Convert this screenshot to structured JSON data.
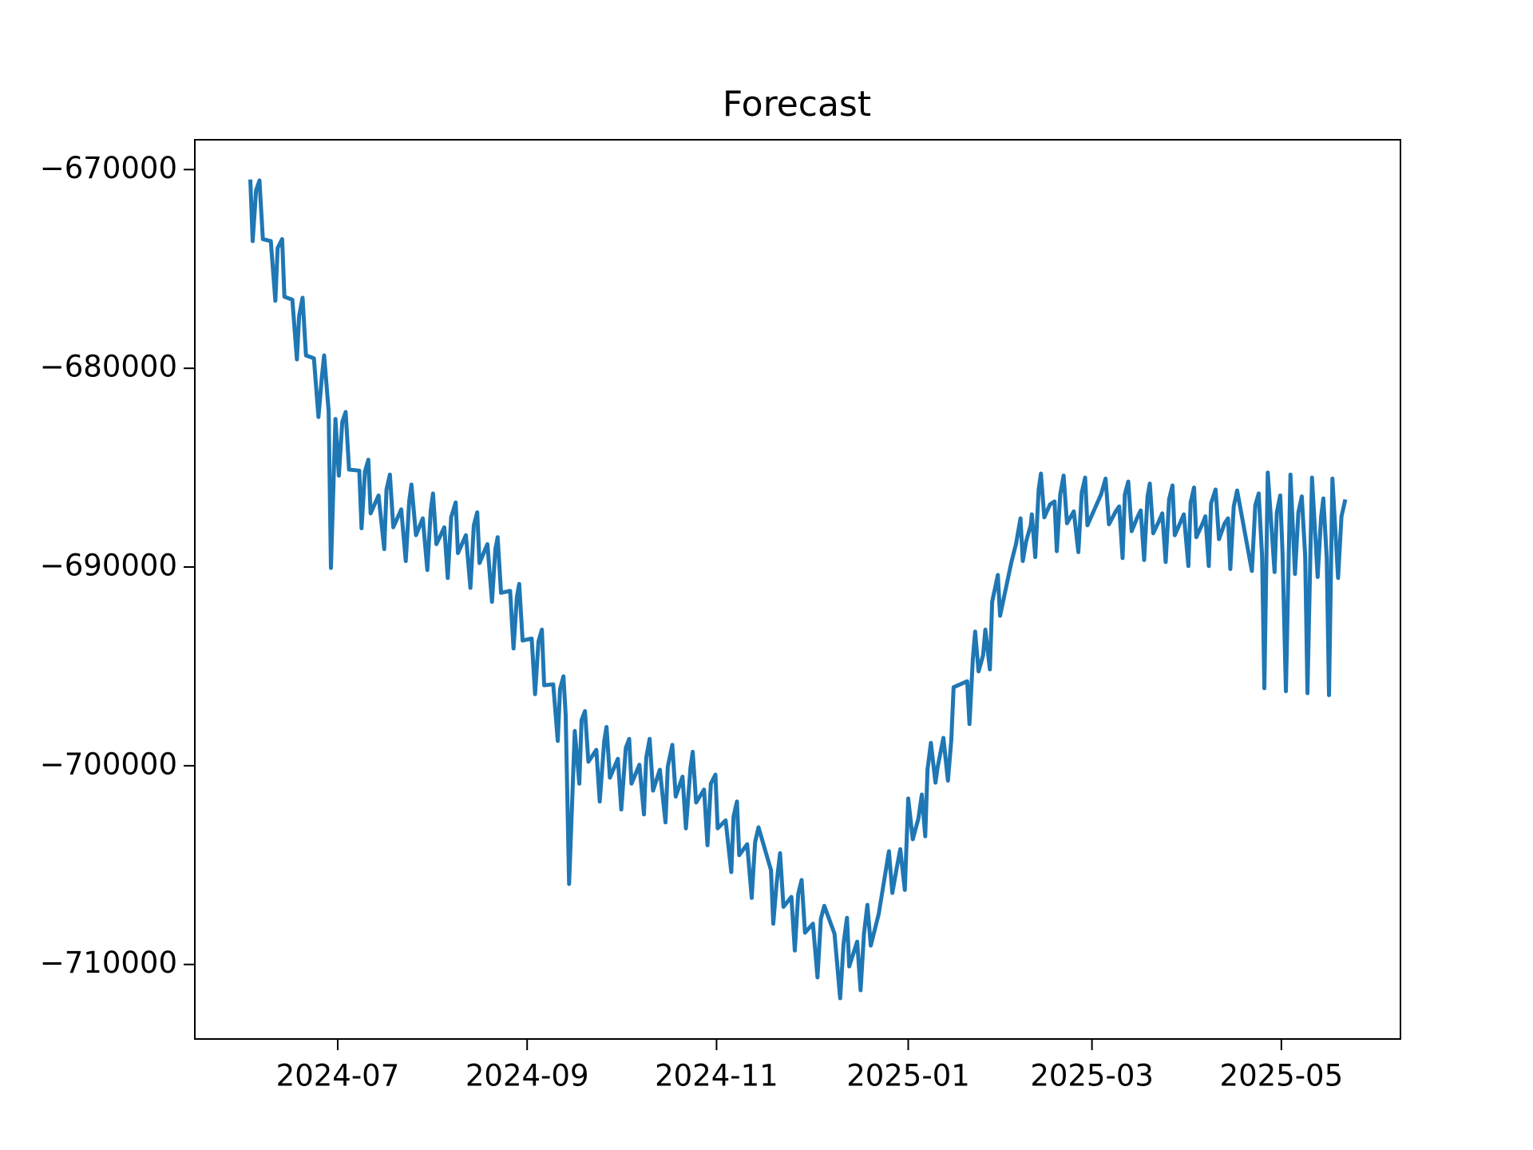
{
  "chart_data": {
    "type": "line",
    "title": "Forecast",
    "color": "#1f77b4",
    "xlim": [
      2024.371,
      2025.434
    ],
    "ylim": [
      -713750,
      -668500
    ],
    "xticks": [
      {
        "value": 2024.497,
        "label": "2024-07"
      },
      {
        "value": 2024.664,
        "label": "2024-09"
      },
      {
        "value": 2024.831,
        "label": "2024-11"
      },
      {
        "value": 2025,
        "label": "2025-01"
      },
      {
        "value": 2025.162,
        "label": "2025-03"
      },
      {
        "value": 2025.329,
        "label": "2025-05"
      }
    ],
    "yticks": [
      {
        "value": -670000,
        "label": "−670000"
      },
      {
        "value": -680000,
        "label": "−680000"
      },
      {
        "value": -690000,
        "label": "−690000"
      },
      {
        "value": -700000,
        "label": "−700000"
      },
      {
        "value": -710000,
        "label": "−710000"
      }
    ],
    "x": [
      2024.42,
      2024.422,
      2024.425,
      2024.428,
      2024.431,
      2024.438,
      2024.442,
      2024.444,
      2024.448,
      2024.45,
      2024.457,
      2024.461,
      2024.463,
      2024.466,
      2024.469,
      2024.476,
      2024.48,
      2024.483,
      2024.485,
      2024.489,
      2024.491,
      2024.495,
      2024.498,
      2024.501,
      2024.504,
      2024.507,
      2024.516,
      2024.518,
      2024.521,
      2024.524,
      2024.526,
      2024.533,
      2024.538,
      2024.54,
      2024.543,
      2024.546,
      2024.553,
      2024.557,
      2024.56,
      2024.562,
      2024.566,
      2024.572,
      2024.576,
      2024.579,
      2024.581,
      2024.584,
      2024.591,
      2024.594,
      2024.597,
      2024.601,
      2024.603,
      2024.61,
      2024.614,
      2024.617,
      2024.62,
      2024.622,
      2024.629,
      2024.633,
      2024.636,
      2024.638,
      2024.641,
      2024.649,
      2024.652,
      2024.655,
      2024.657,
      2024.66,
      2024.668,
      2024.671,
      2024.674,
      2024.677,
      2024.679,
      2024.687,
      2024.691,
      2024.693,
      2024.696,
      2024.698,
      2024.701,
      2024.706,
      2024.71,
      2024.712,
      2024.715,
      2024.718,
      2024.725,
      2024.728,
      2024.732,
      2024.734,
      2024.737,
      2024.744,
      2024.747,
      2024.751,
      2024.754,
      2024.756,
      2024.763,
      2024.767,
      2024.769,
      2024.772,
      2024.775,
      2024.781,
      2024.786,
      2024.788,
      2024.792,
      2024.795,
      2024.801,
      2024.804,
      2024.808,
      2024.81,
      2024.813,
      2024.82,
      2024.823,
      2024.826,
      2024.83,
      2024.832,
      2024.839,
      2024.844,
      2024.846,
      2024.849,
      2024.851,
      2024.858,
      2024.862,
      2024.865,
      2024.868,
      2024.879,
      2024.881,
      2024.884,
      2024.887,
      2024.89,
      2024.897,
      2024.9,
      2024.903,
      2024.906,
      2024.909,
      2024.916,
      2024.92,
      2024.923,
      2024.926,
      2024.935,
      2024.94,
      2024.943,
      2024.946,
      2024.948,
      2024.955,
      2024.958,
      2024.961,
      2024.964,
      2024.967,
      2024.974,
      2024.983,
      2024.986,
      2024.99,
      2024.993,
      2024.997,
      2025.0,
      2025.004,
      2025.009,
      2025.012,
      2025.015,
      2025.017,
      2025.02,
      2025.024,
      2025.026,
      2025.031,
      2025.035,
      2025.038,
      2025.04,
      2025.048,
      2025.052,
      2025.054,
      2025.057,
      2025.059,
      2025.062,
      2025.066,
      2025.068,
      2025.072,
      2025.074,
      2025.079,
      2025.081,
      2025.091,
      2025.095,
      2025.099,
      2025.101,
      2025.104,
      2025.108,
      2025.109,
      2025.112,
      2025.115,
      2025.117,
      2025.12,
      2025.125,
      2025.129,
      2025.131,
      2025.134,
      2025.137,
      2025.14,
      2025.146,
      2025.15,
      2025.153,
      2025.156,
      2025.158,
      2025.17,
      2025.174,
      2025.177,
      2025.183,
      2025.186,
      2025.189,
      2025.191,
      2025.194,
      2025.197,
      2025.202,
      2025.205,
      2025.208,
      2025.211,
      2025.213,
      2025.216,
      2025.221,
      2025.224,
      2025.227,
      2025.23,
      2025.233,
      2025.235,
      2025.24,
      2025.243,
      2025.247,
      2025.249,
      2025.252,
      2025.254,
      2025.26,
      2025.262,
      2025.265,
      2025.267,
      2025.271,
      2025.274,
      2025.279,
      2025.282,
      2025.284,
      2025.287,
      2025.29,
      2025.303,
      2025.306,
      2025.309,
      2025.312,
      2025.314,
      2025.317,
      2025.323,
      2025.325,
      2025.328,
      2025.33,
      2025.333,
      2025.337,
      2025.341,
      2025.344,
      2025.347,
      2025.35,
      2025.352,
      2025.356,
      2025.361,
      2025.364,
      2025.366,
      2025.369,
      2025.371,
      2025.374,
      2025.379,
      2025.382,
      2025.385
    ],
    "values": [
      -670600,
      -673600,
      -671050,
      -670550,
      -673500,
      -673600,
      -676600,
      -673950,
      -673500,
      -676400,
      -676550,
      -679550,
      -677350,
      -676450,
      -679350,
      -679500,
      -682450,
      -680450,
      -679350,
      -682150,
      -690050,
      -682550,
      -685400,
      -682700,
      -682200,
      -685100,
      -685150,
      -688050,
      -685200,
      -684600,
      -687300,
      -686400,
      -689100,
      -686100,
      -685350,
      -688000,
      -687100,
      -689700,
      -686700,
      -685850,
      -688400,
      -687550,
      -690150,
      -687150,
      -686300,
      -688850,
      -688000,
      -690550,
      -687500,
      -686750,
      -689300,
      -688400,
      -691050,
      -687900,
      -687250,
      -689800,
      -688850,
      -691750,
      -689100,
      -688500,
      -691300,
      -691200,
      -694100,
      -691500,
      -690850,
      -693700,
      -693600,
      -696400,
      -693750,
      -693150,
      -695950,
      -695900,
      -698750,
      -696150,
      -695500,
      -697450,
      -705950,
      -698250,
      -700900,
      -697700,
      -697250,
      -699800,
      -699200,
      -701800,
      -698750,
      -698050,
      -700600,
      -699650,
      -702200,
      -699100,
      -698650,
      -700900,
      -699950,
      -702450,
      -699600,
      -698650,
      -701250,
      -700200,
      -702850,
      -700050,
      -698950,
      -701550,
      -700550,
      -703150,
      -700100,
      -699300,
      -701850,
      -701200,
      -704000,
      -700900,
      -700450,
      -703150,
      -702750,
      -705350,
      -702550,
      -701800,
      -704500,
      -703950,
      -706650,
      -703850,
      -703100,
      -705250,
      -707950,
      -705900,
      -704400,
      -707100,
      -706600,
      -709300,
      -706450,
      -705750,
      -708400,
      -707950,
      -710650,
      -707700,
      -707050,
      -708450,
      -711700,
      -708950,
      -707650,
      -710100,
      -708850,
      -711300,
      -708450,
      -707000,
      -709050,
      -707450,
      -704300,
      -706400,
      -705100,
      -704200,
      -706250,
      -701650,
      -703700,
      -702650,
      -701450,
      -703550,
      -700200,
      -698850,
      -700850,
      -700050,
      -698600,
      -700750,
      -698700,
      -696050,
      -695850,
      -695750,
      -697900,
      -694600,
      -693250,
      -695250,
      -694450,
      -693150,
      -695150,
      -691750,
      -690400,
      -692450,
      -689750,
      -688850,
      -687550,
      -689700,
      -688700,
      -687900,
      -687350,
      -689500,
      -686100,
      -685300,
      -687500,
      -686850,
      -686700,
      -689200,
      -686350,
      -685400,
      -687800,
      -687200,
      -689250,
      -686250,
      -685500,
      -687900,
      -686350,
      -685550,
      -687850,
      -687200,
      -686950,
      -689550,
      -686350,
      -685700,
      -688200,
      -687500,
      -687150,
      -689650,
      -686450,
      -685800,
      -688300,
      -687700,
      -687300,
      -689750,
      -686600,
      -685900,
      -688400,
      -687750,
      -687350,
      -689950,
      -686750,
      -686000,
      -688500,
      -687750,
      -687450,
      -689950,
      -686800,
      -686100,
      -688600,
      -687800,
      -687550,
      -690100,
      -686950,
      -686150,
      -690200,
      -686900,
      -686300,
      -689450,
      -696100,
      -685250,
      -690250,
      -687250,
      -686400,
      -689250,
      -696250,
      -685350,
      -690350,
      -687250,
      -686450,
      -689450,
      -696350,
      -685500,
      -690500,
      -687500,
      -686550,
      -689550,
      -696450,
      -685550,
      -690550,
      -687450,
      -686700
    ]
  }
}
